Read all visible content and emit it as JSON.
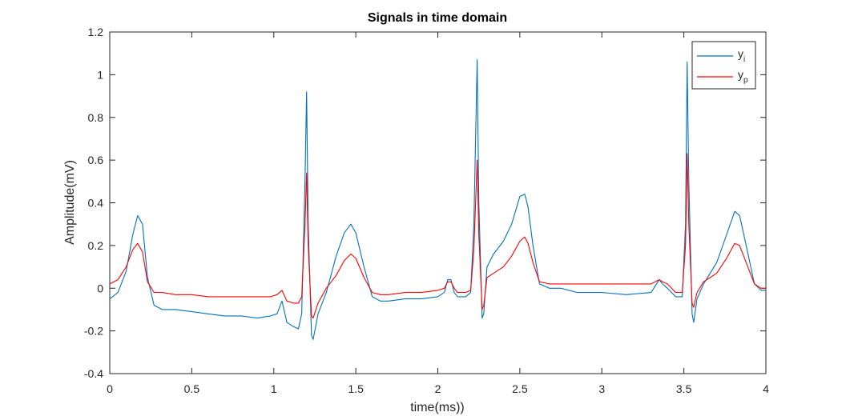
{
  "chart_data": {
    "type": "line",
    "title": "Signals in time domain",
    "xlabel": "time(ms))",
    "ylabel": "Amplitude(mV)",
    "xlim": [
      0,
      4
    ],
    "ylim": [
      -0.4,
      1.2
    ],
    "xticks": [
      0,
      0.5,
      1,
      1.5,
      2,
      2.5,
      3,
      3.5,
      4
    ],
    "xtick_labels": [
      "0",
      "0.5",
      "1",
      "1.5",
      "2",
      "2.5",
      "3",
      "3.5",
      "4"
    ],
    "yticks": [
      -0.4,
      -0.2,
      0,
      0.2,
      0.4,
      0.6,
      0.8,
      1,
      1.2
    ],
    "ytick_labels": [
      "-0.4",
      "-0.2",
      "0",
      "0.2",
      "0.4",
      "0.6",
      "0.8",
      "1",
      "1.2"
    ],
    "grid": false,
    "legend_position": "top-right",
    "series": [
      {
        "name": "y",
        "name_subscript": "i",
        "color": "#0072BD",
        "x": [
          0,
          0.05,
          0.1,
          0.14,
          0.17,
          0.2,
          0.23,
          0.27,
          0.32,
          0.4,
          0.5,
          0.6,
          0.7,
          0.8,
          0.9,
          0.98,
          1.02,
          1.05,
          1.08,
          1.12,
          1.15,
          1.17,
          1.19,
          1.2,
          1.21,
          1.23,
          1.24,
          1.27,
          1.32,
          1.38,
          1.43,
          1.47,
          1.5,
          1.55,
          1.6,
          1.65,
          1.7,
          1.8,
          1.9,
          2.0,
          2.04,
          2.06,
          2.08,
          2.1,
          2.12,
          2.17,
          2.2,
          2.22,
          2.24,
          2.25,
          2.27,
          2.28,
          2.3,
          2.34,
          2.4,
          2.45,
          2.5,
          2.53,
          2.55,
          2.58,
          2.62,
          2.68,
          2.75,
          2.85,
          3.0,
          3.15,
          3.3,
          3.35,
          3.37,
          3.4,
          3.45,
          3.49,
          3.51,
          3.52,
          3.53,
          3.55,
          3.56,
          3.58,
          3.62,
          3.7,
          3.76,
          3.81,
          3.84,
          3.88,
          3.93,
          3.97,
          4.0
        ],
        "y": [
          -0.05,
          -0.02,
          0.08,
          0.25,
          0.34,
          0.3,
          0.05,
          -0.08,
          -0.1,
          -0.1,
          -0.11,
          -0.12,
          -0.13,
          -0.13,
          -0.14,
          -0.13,
          -0.12,
          -0.06,
          -0.16,
          -0.18,
          -0.19,
          -0.12,
          0.5,
          0.92,
          0.3,
          -0.22,
          -0.24,
          -0.12,
          -0.02,
          0.15,
          0.26,
          0.3,
          0.26,
          0.1,
          -0.04,
          -0.06,
          -0.06,
          -0.05,
          -0.05,
          -0.04,
          -0.02,
          0.04,
          0.04,
          -0.02,
          -0.04,
          -0.04,
          -0.02,
          0.3,
          1.07,
          0.4,
          -0.14,
          -0.12,
          0.1,
          0.16,
          0.22,
          0.3,
          0.43,
          0.44,
          0.38,
          0.2,
          0.02,
          0.0,
          0.0,
          -0.02,
          -0.02,
          -0.03,
          -0.02,
          0.04,
          0.02,
          0.0,
          -0.04,
          -0.04,
          0.3,
          1.06,
          0.5,
          -0.12,
          -0.16,
          -0.05,
          0.02,
          0.12,
          0.25,
          0.36,
          0.34,
          0.2,
          0.02,
          -0.01,
          -0.01
        ]
      },
      {
        "name": "y",
        "name_subscript": "p",
        "color": "#FF0000",
        "x": [
          0,
          0.05,
          0.1,
          0.14,
          0.17,
          0.2,
          0.23,
          0.27,
          0.32,
          0.4,
          0.5,
          0.6,
          0.7,
          0.8,
          0.9,
          0.98,
          1.02,
          1.05,
          1.08,
          1.12,
          1.15,
          1.17,
          1.19,
          1.2,
          1.21,
          1.23,
          1.24,
          1.27,
          1.32,
          1.38,
          1.43,
          1.47,
          1.5,
          1.55,
          1.6,
          1.65,
          1.7,
          1.8,
          1.9,
          2.0,
          2.04,
          2.06,
          2.08,
          2.1,
          2.12,
          2.17,
          2.2,
          2.22,
          2.24,
          2.25,
          2.27,
          2.28,
          2.3,
          2.34,
          2.4,
          2.45,
          2.5,
          2.53,
          2.55,
          2.58,
          2.62,
          2.68,
          2.75,
          2.85,
          3.0,
          3.15,
          3.3,
          3.35,
          3.37,
          3.4,
          3.45,
          3.49,
          3.51,
          3.52,
          3.53,
          3.55,
          3.56,
          3.58,
          3.62,
          3.7,
          3.76,
          3.81,
          3.84,
          3.88,
          3.93,
          3.97,
          4.0
        ],
        "y": [
          0.02,
          0.04,
          0.1,
          0.18,
          0.21,
          0.17,
          0.03,
          -0.02,
          -0.02,
          -0.03,
          -0.03,
          -0.04,
          -0.04,
          -0.04,
          -0.04,
          -0.04,
          -0.03,
          -0.01,
          -0.06,
          -0.07,
          -0.07,
          -0.04,
          0.3,
          0.54,
          0.2,
          -0.13,
          -0.14,
          -0.07,
          0.0,
          0.06,
          0.13,
          0.16,
          0.14,
          0.05,
          -0.02,
          -0.03,
          -0.03,
          -0.02,
          -0.02,
          -0.01,
          0.0,
          0.03,
          0.03,
          0.0,
          -0.02,
          -0.02,
          -0.01,
          0.18,
          0.6,
          0.25,
          -0.1,
          -0.08,
          0.05,
          0.07,
          0.1,
          0.15,
          0.22,
          0.24,
          0.21,
          0.12,
          0.03,
          0.02,
          0.02,
          0.02,
          0.02,
          0.02,
          0.02,
          0.04,
          0.03,
          0.02,
          -0.02,
          -0.02,
          0.2,
          0.63,
          0.3,
          -0.07,
          -0.09,
          -0.02,
          0.03,
          0.07,
          0.14,
          0.21,
          0.2,
          0.12,
          0.02,
          0.0,
          0.0
        ]
      }
    ]
  }
}
